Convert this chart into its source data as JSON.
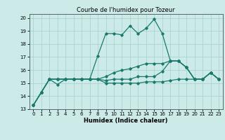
{
  "title": "Courbe de l'humidex pour Tozeur",
  "xlabel": "Humidex (Indice chaleur)",
  "xlim": [
    -0.5,
    23.5
  ],
  "ylim": [
    13,
    20.3
  ],
  "yticks": [
    13,
    14,
    15,
    16,
    17,
    18,
    19,
    20
  ],
  "xticks": [
    0,
    1,
    2,
    3,
    4,
    5,
    6,
    7,
    8,
    9,
    10,
    11,
    12,
    13,
    14,
    15,
    16,
    17,
    18,
    19,
    20,
    21,
    22,
    23
  ],
  "bg_color": "#cceae8",
  "grid_color": "#aad4d0",
  "line_color": "#1a7a6a",
  "series": [
    [
      13.3,
      14.3,
      15.3,
      15.3,
      15.3,
      15.3,
      15.3,
      15.3,
      15.3,
      15.0,
      15.0,
      15.0,
      15.0,
      15.0,
      15.1,
      15.1,
      15.1,
      15.2,
      15.3,
      15.3,
      15.3,
      15.3,
      15.8,
      15.3
    ],
    [
      13.3,
      14.3,
      15.3,
      14.9,
      15.3,
      15.3,
      15.3,
      15.3,
      15.3,
      15.2,
      15.3,
      15.3,
      15.3,
      15.5,
      15.5,
      15.5,
      15.9,
      16.7,
      16.7,
      16.2,
      15.3,
      15.3,
      15.8,
      15.3
    ],
    [
      13.3,
      14.3,
      15.3,
      15.3,
      15.3,
      15.3,
      15.3,
      15.3,
      15.3,
      15.5,
      15.8,
      16.0,
      16.1,
      16.3,
      16.5,
      16.5,
      16.5,
      16.7,
      16.7,
      16.2,
      15.3,
      15.3,
      15.8,
      15.3
    ],
    [
      13.3,
      14.3,
      15.3,
      15.3,
      15.3,
      15.3,
      15.3,
      15.3,
      17.1,
      18.8,
      18.8,
      18.7,
      19.4,
      18.8,
      19.2,
      19.9,
      18.8,
      16.7,
      16.7,
      16.2,
      15.3,
      15.3,
      15.8,
      15.3
    ]
  ],
  "marker": "D",
  "markersize": 1.8,
  "linewidth": 0.9,
  "title_fontsize": 6,
  "xlabel_fontsize": 6,
  "tick_fontsize": 5
}
